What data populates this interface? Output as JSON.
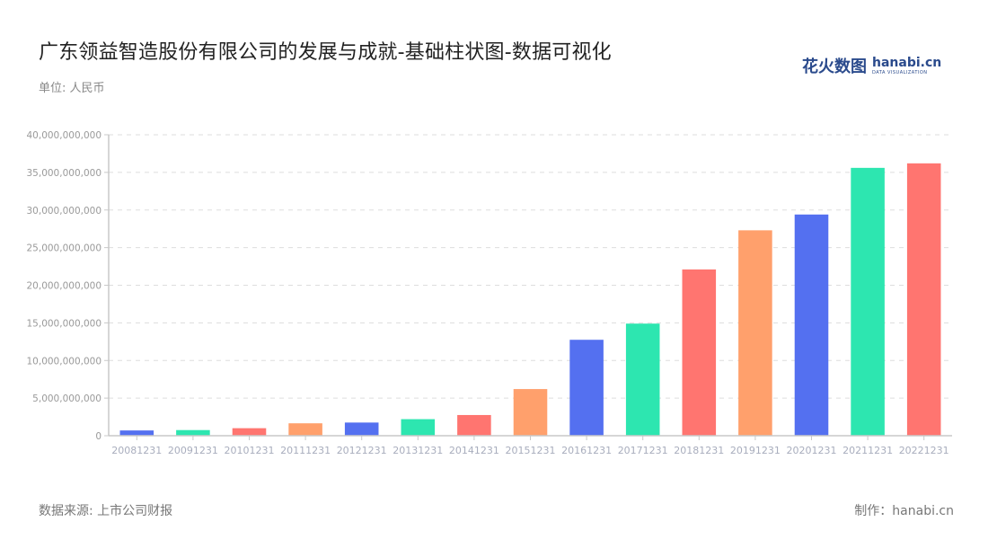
{
  "header": {
    "title": "广东领益智造股份有限公司的发展与成就-基础柱状图-数据可视化",
    "unit": "单位: 人民币",
    "logo_cn": "花火数图",
    "logo_en": "hanabi.cn",
    "logo_sub": "DATA VISUALIZATION"
  },
  "footer": {
    "source": "数据来源: 上市公司财报",
    "credit": "制作：hanabi.cn"
  },
  "colors": [
    "#5470f0",
    "#2de6b0",
    "#ff7570",
    "#ffa06c"
  ],
  "chart_data": {
    "type": "bar",
    "title": "广东领益智造股份有限公司的发展与成就-基础柱状图-数据可视化",
    "subtitle": "单位: 人民币",
    "xlabel": "",
    "ylabel": "",
    "ylim": [
      0,
      40000000000
    ],
    "yticks": [
      "0",
      "5,000,000,000",
      "10,000,000,000",
      "15,000,000,000",
      "20,000,000,000",
      "25,000,000,000",
      "30,000,000,000",
      "35,000,000,000",
      "40,000,000,000"
    ],
    "grid": true,
    "legend": false,
    "categories": [
      "20081231",
      "20091231",
      "20101231",
      "20111231",
      "20121231",
      "20131231",
      "20141231",
      "20151231",
      "20161231",
      "20171231",
      "20181231",
      "20191231",
      "20201231",
      "20211231",
      "20221231"
    ],
    "values": [
      700000000,
      750000000,
      1000000000,
      1650000000,
      1750000000,
      2200000000,
      2750000000,
      6200000000,
      12750000000,
      14900000000,
      22100000000,
      27300000000,
      29400000000,
      35600000000,
      36200000000
    ],
    "bar_colors": [
      "#5470f0",
      "#2de6b0",
      "#ff7570",
      "#ffa06c",
      "#5470f0",
      "#2de6b0",
      "#ff7570",
      "#ffa06c",
      "#5470f0",
      "#2de6b0",
      "#ff7570",
      "#ffa06c",
      "#5470f0",
      "#2de6b0",
      "#ff7570"
    ]
  }
}
